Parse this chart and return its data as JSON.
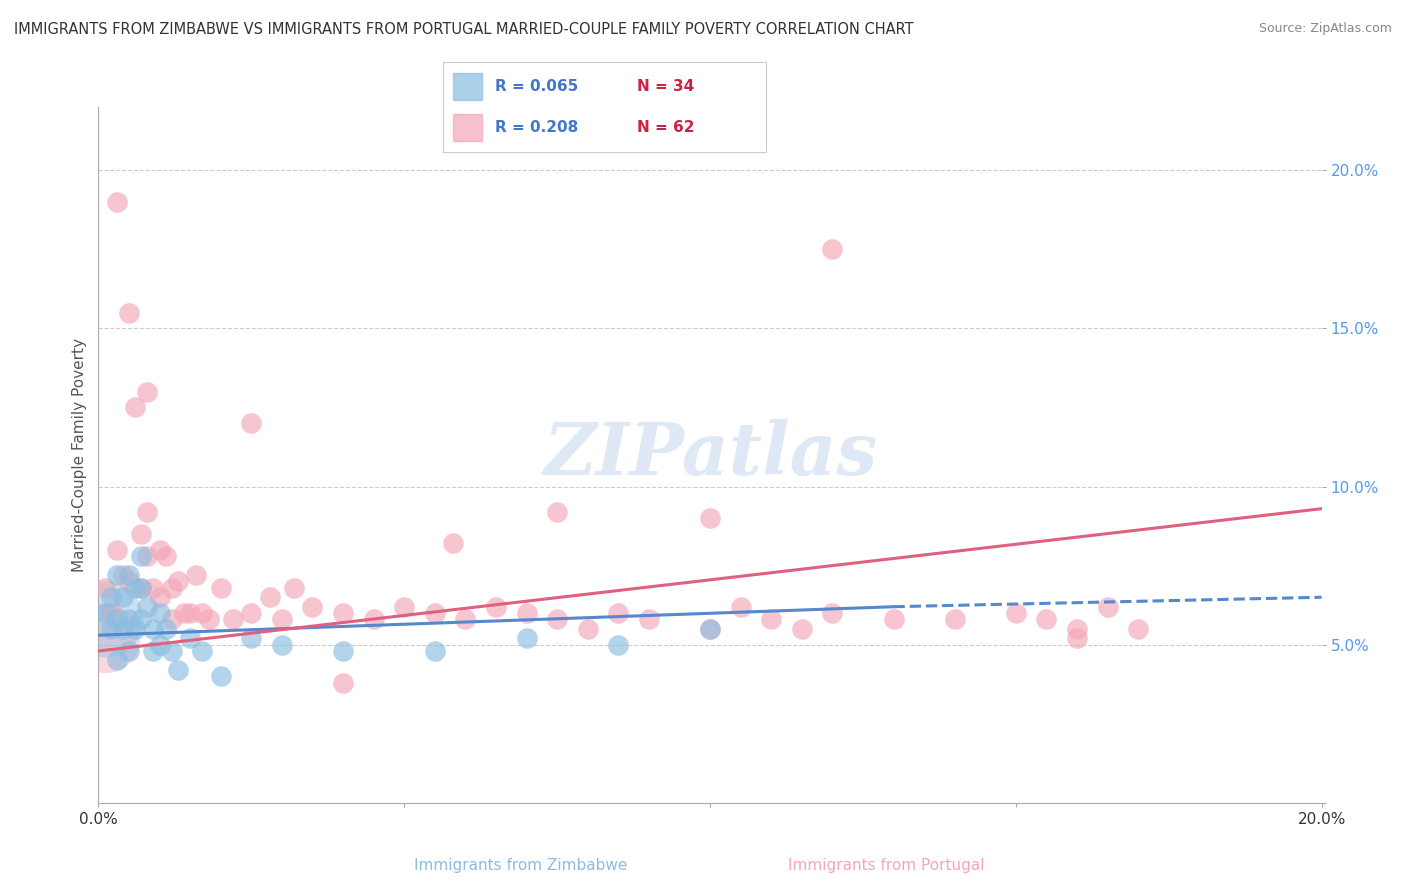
{
  "title": "IMMIGRANTS FROM ZIMBABWE VS IMMIGRANTS FROM PORTUGAL MARRIED-COUPLE FAMILY POVERTY CORRELATION CHART",
  "source": "Source: ZipAtlas.com",
  "xlabel_zim": "Immigrants from Zimbabwe",
  "xlabel_port": "Immigrants from Portugal",
  "ylabel": "Married-Couple Family Poverty",
  "xlim": [
    0.0,
    0.2
  ],
  "ylim": [
    0.0,
    0.22
  ],
  "zimbabwe_color": "#8bbde0",
  "zimbabwe_edge": "#8bbde0",
  "portugal_color": "#f4a6b8",
  "portugal_edge": "#f4a6b8",
  "line_zim_color": "#5588cc",
  "line_port_color": "#e06080",
  "zimbabwe_R": 0.065,
  "zimbabwe_N": 34,
  "portugal_R": 0.208,
  "portugal_N": 62,
  "legend_R_color": "#4477cc",
  "legend_N_color": "#cc2244",
  "ytick_color": "#5599ee",
  "xtick_color": "#333333",
  "zimbabwe_x": [
    0.001,
    0.002,
    0.002,
    0.003,
    0.003,
    0.003,
    0.004,
    0.004,
    0.005,
    0.005,
    0.005,
    0.006,
    0.006,
    0.007,
    0.007,
    0.007,
    0.008,
    0.009,
    0.009,
    0.01,
    0.01,
    0.011,
    0.012,
    0.013,
    0.015,
    0.017,
    0.02,
    0.025,
    0.03,
    0.04,
    0.055,
    0.07,
    0.085,
    0.1
  ],
  "zimbabwe_y": [
    0.06,
    0.065,
    0.055,
    0.072,
    0.058,
    0.045,
    0.065,
    0.055,
    0.072,
    0.058,
    0.048,
    0.068,
    0.055,
    0.078,
    0.068,
    0.058,
    0.062,
    0.055,
    0.048,
    0.06,
    0.05,
    0.055,
    0.048,
    0.042,
    0.052,
    0.048,
    0.04,
    0.052,
    0.05,
    0.048,
    0.048,
    0.052,
    0.05,
    0.055
  ],
  "zimbabwe_big_x": [
    0.001
  ],
  "zimbabwe_big_y": [
    0.058
  ],
  "portugal_x": [
    0.001,
    0.002,
    0.003,
    0.003,
    0.004,
    0.005,
    0.005,
    0.006,
    0.007,
    0.007,
    0.008,
    0.008,
    0.009,
    0.01,
    0.01,
    0.011,
    0.012,
    0.012,
    0.013,
    0.014,
    0.015,
    0.016,
    0.017,
    0.018,
    0.02,
    0.022,
    0.025,
    0.028,
    0.03,
    0.032,
    0.035,
    0.04,
    0.045,
    0.05,
    0.055,
    0.06,
    0.065,
    0.07,
    0.075,
    0.08,
    0.09,
    0.1,
    0.105,
    0.11,
    0.115,
    0.12,
    0.13,
    0.14,
    0.15,
    0.155,
    0.16,
    0.165,
    0.17,
    0.12,
    0.058,
    0.16,
    0.1,
    0.04,
    0.075,
    0.085,
    0.025,
    0.008
  ],
  "portugal_y": [
    0.068,
    0.06,
    0.19,
    0.08,
    0.072,
    0.155,
    0.07,
    0.125,
    0.085,
    0.068,
    0.092,
    0.078,
    0.068,
    0.08,
    0.065,
    0.078,
    0.068,
    0.058,
    0.07,
    0.06,
    0.06,
    0.072,
    0.06,
    0.058,
    0.068,
    0.058,
    0.06,
    0.065,
    0.058,
    0.068,
    0.062,
    0.06,
    0.058,
    0.062,
    0.06,
    0.058,
    0.062,
    0.06,
    0.058,
    0.055,
    0.058,
    0.055,
    0.062,
    0.058,
    0.055,
    0.06,
    0.058,
    0.058,
    0.06,
    0.058,
    0.055,
    0.062,
    0.055,
    0.175,
    0.082,
    0.052,
    0.09,
    0.038,
    0.092,
    0.06,
    0.12,
    0.13
  ],
  "portugal_big_x": [
    0.001
  ],
  "portugal_big_y": [
    0.052
  ],
  "zim_line_x": [
    0.0,
    0.2
  ],
  "zim_line_y": [
    0.053,
    0.065
  ],
  "port_line_x": [
    0.0,
    0.2
  ],
  "port_line_y": [
    0.048,
    0.093
  ]
}
